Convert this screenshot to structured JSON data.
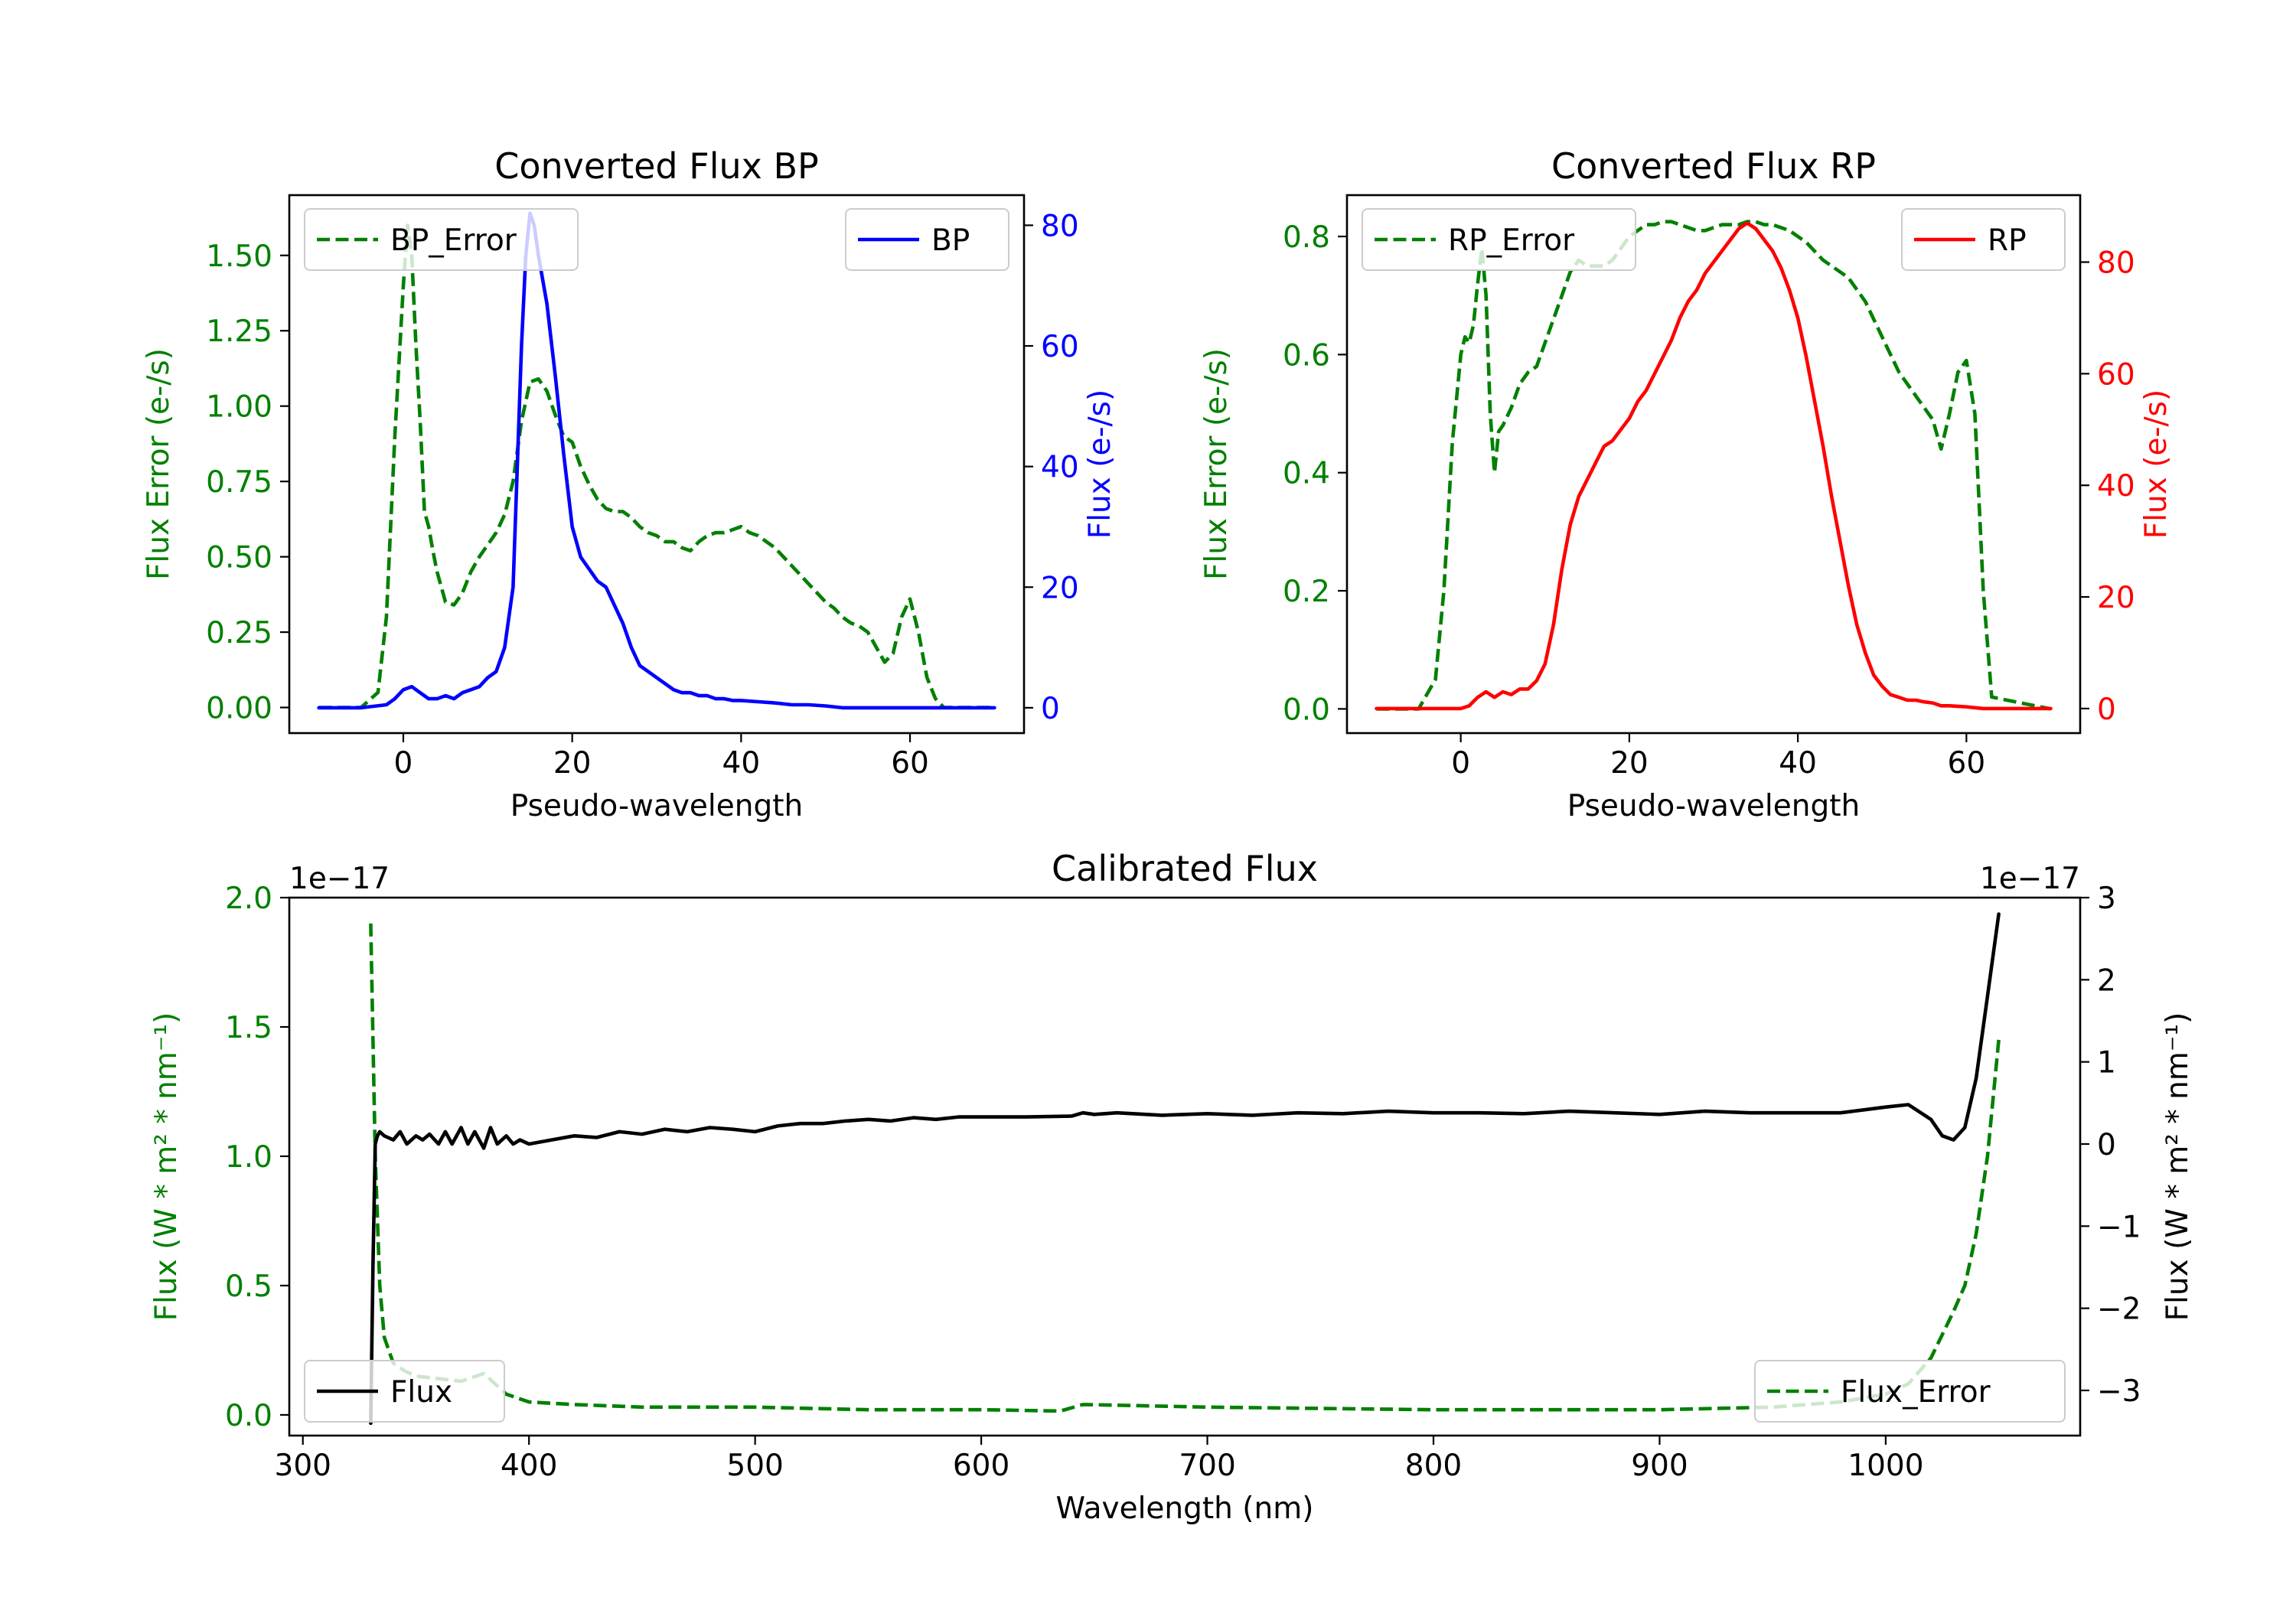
{
  "colors": {
    "bp": "#0000ff",
    "rp": "#ff0000",
    "error": "#008000",
    "flux": "#000000",
    "axis": "#000000",
    "legend_border": "#cccccc"
  },
  "chart_data": [
    {
      "id": "bp",
      "type": "line",
      "title": "Converted Flux BP",
      "xlabel": "Pseudo-wavelength",
      "ylabel_left": "Flux Error (e-/s)",
      "ylabel_right": "Flux (e-/s)",
      "xlim": [
        -13.5,
        73.5
      ],
      "ylim_left": [
        -0.085,
        1.7
      ],
      "ylim_right": [
        -4.2,
        85
      ],
      "xticks": [
        0,
        20,
        40,
        60
      ],
      "yticks_left": [
        0.0,
        0.25,
        0.5,
        0.75,
        1.0,
        1.25,
        1.5
      ],
      "ytick_labels_left": [
        "0.00",
        "0.25",
        "0.50",
        "0.75",
        "1.00",
        "1.25",
        "1.50"
      ],
      "yticks_right": [
        0,
        20,
        40,
        60,
        80
      ],
      "ytick_labels_right": [
        "0",
        "20",
        "40",
        "60",
        "80"
      ],
      "legend_left": "BP_Error",
      "legend_right": "BP",
      "series": [
        {
          "name": "BP_Error",
          "axis": "left",
          "style": "dashed",
          "color_key": "error",
          "x": [
            -10,
            -5,
            -3,
            -2,
            -1,
            0,
            0.5,
            1,
            1.5,
            2,
            2.5,
            3,
            3.5,
            4,
            4.5,
            5,
            6,
            7,
            8,
            9,
            10,
            11,
            12,
            13,
            14,
            15,
            16,
            17,
            18,
            19,
            20,
            21,
            22,
            23,
            24,
            25,
            26,
            27,
            28,
            29,
            30,
            31,
            32,
            33,
            34,
            35,
            36,
            37,
            38,
            39,
            40,
            41,
            42,
            43,
            44,
            45,
            46,
            47,
            48,
            49,
            50,
            51,
            52,
            53,
            54,
            55,
            56,
            57,
            58,
            59,
            60,
            61,
            62,
            63,
            64,
            70
          ],
          "y": [
            0.0,
            0.0,
            0.05,
            0.3,
            0.9,
            1.4,
            1.6,
            1.5,
            1.2,
            0.95,
            0.65,
            0.6,
            0.52,
            0.45,
            0.4,
            0.35,
            0.34,
            0.38,
            0.45,
            0.5,
            0.54,
            0.58,
            0.64,
            0.75,
            0.95,
            1.08,
            1.09,
            1.05,
            0.97,
            0.9,
            0.88,
            0.8,
            0.74,
            0.69,
            0.66,
            0.65,
            0.65,
            0.63,
            0.6,
            0.58,
            0.57,
            0.55,
            0.55,
            0.53,
            0.52,
            0.55,
            0.57,
            0.58,
            0.58,
            0.59,
            0.6,
            0.58,
            0.57,
            0.55,
            0.53,
            0.5,
            0.47,
            0.44,
            0.41,
            0.38,
            0.35,
            0.33,
            0.3,
            0.28,
            0.27,
            0.25,
            0.2,
            0.15,
            0.18,
            0.3,
            0.36,
            0.25,
            0.1,
            0.03,
            0.0,
            0.0
          ]
        },
        {
          "name": "BP",
          "axis": "right",
          "style": "solid",
          "color_key": "bp",
          "x": [
            -10,
            -5,
            -2,
            -1,
            0,
            1,
            2,
            3,
            4,
            5,
            6,
            7,
            8,
            9,
            10,
            11,
            12,
            13,
            13.5,
            14,
            14.5,
            15,
            15.5,
            16,
            17,
            18,
            19,
            20,
            21,
            22,
            23,
            24,
            25,
            26,
            27,
            28,
            29,
            30,
            31,
            32,
            33,
            34,
            35,
            36,
            37,
            38,
            39,
            40,
            42,
            44,
            46,
            48,
            50,
            52,
            54,
            56,
            60,
            65,
            70
          ],
          "y": [
            0,
            0,
            0.5,
            1.5,
            3,
            3.5,
            2.5,
            1.5,
            1.5,
            2,
            1.5,
            2.5,
            3,
            3.5,
            5,
            6,
            10,
            20,
            40,
            60,
            75,
            82,
            80,
            75,
            67,
            55,
            42,
            30,
            25,
            23,
            21,
            20,
            17,
            14,
            10,
            7,
            6,
            5,
            4,
            3,
            2.5,
            2.5,
            2,
            2,
            1.5,
            1.5,
            1.2,
            1.2,
            1,
            0.8,
            0.5,
            0.5,
            0.3,
            0,
            0,
            0,
            0,
            0,
            0
          ]
        }
      ]
    },
    {
      "id": "rp",
      "type": "line",
      "title": "Converted Flux RP",
      "xlabel": "Pseudo-wavelength",
      "ylabel_left": "Flux Error (e-/s)",
      "ylabel_right": "Flux (e-/s)",
      "xlim": [
        -13.5,
        73.5
      ],
      "ylim_left": [
        -0.041,
        0.87
      ],
      "ylim_right": [
        -4.4,
        92
      ],
      "xticks": [
        0,
        20,
        40,
        60
      ],
      "yticks_left": [
        0.0,
        0.2,
        0.4,
        0.6,
        0.8
      ],
      "ytick_labels_left": [
        "0.0",
        "0.2",
        "0.4",
        "0.6",
        "0.8"
      ],
      "yticks_right": [
        0,
        20,
        40,
        60,
        80
      ],
      "ytick_labels_right": [
        "0",
        "20",
        "40",
        "60",
        "80"
      ],
      "legend_left": "RP_Error",
      "legend_right": "RP",
      "series": [
        {
          "name": "RP_Error",
          "axis": "left",
          "style": "dashed",
          "color_key": "error",
          "x": [
            -10,
            -5,
            -3,
            -2,
            -1,
            0,
            0.5,
            1,
            1.5,
            2,
            2.5,
            3,
            3.5,
            4,
            4.5,
            5,
            6,
            7,
            8,
            9,
            10,
            11,
            12,
            13,
            14,
            15,
            16,
            17,
            18,
            19,
            20,
            21,
            22,
            23,
            24,
            25,
            26,
            27,
            28,
            29,
            30,
            31,
            32,
            33,
            34,
            35,
            36,
            37,
            38,
            39,
            40,
            41,
            42,
            43,
            44,
            45,
            46,
            47,
            48,
            49,
            50,
            51,
            52,
            53,
            54,
            55,
            56,
            57,
            58,
            59,
            60,
            61,
            62,
            63,
            70
          ],
          "y": [
            0.0,
            0.0,
            0.05,
            0.2,
            0.45,
            0.6,
            0.63,
            0.62,
            0.65,
            0.72,
            0.78,
            0.7,
            0.5,
            0.4,
            0.47,
            0.48,
            0.51,
            0.55,
            0.57,
            0.58,
            0.62,
            0.66,
            0.7,
            0.74,
            0.76,
            0.75,
            0.75,
            0.75,
            0.76,
            0.78,
            0.8,
            0.81,
            0.82,
            0.82,
            0.825,
            0.825,
            0.82,
            0.815,
            0.81,
            0.81,
            0.815,
            0.82,
            0.82,
            0.82,
            0.825,
            0.825,
            0.82,
            0.82,
            0.815,
            0.81,
            0.8,
            0.79,
            0.775,
            0.76,
            0.75,
            0.74,
            0.73,
            0.71,
            0.69,
            0.66,
            0.63,
            0.6,
            0.57,
            0.55,
            0.53,
            0.51,
            0.49,
            0.44,
            0.5,
            0.57,
            0.59,
            0.5,
            0.2,
            0.02,
            0.0
          ]
        },
        {
          "name": "RP",
          "axis": "right",
          "style": "solid",
          "color_key": "rp",
          "x": [
            -10,
            -5,
            0,
            1,
            2,
            3,
            4,
            5,
            6,
            7,
            8,
            9,
            10,
            11,
            12,
            13,
            14,
            15,
            16,
            17,
            18,
            19,
            20,
            21,
            22,
            23,
            24,
            25,
            26,
            27,
            28,
            29,
            30,
            31,
            32,
            33,
            34,
            35,
            36,
            37,
            38,
            39,
            40,
            41,
            42,
            43,
            44,
            45,
            46,
            47,
            48,
            49,
            50,
            51,
            52,
            53,
            54,
            55,
            56,
            57,
            58,
            60,
            62,
            65,
            70
          ],
          "y": [
            0,
            0,
            0,
            0.5,
            2,
            3,
            2,
            3,
            2.5,
            3.5,
            3.5,
            5,
            8,
            15,
            25,
            33,
            38,
            41,
            44,
            47,
            48,
            50,
            52,
            55,
            57,
            60,
            63,
            66,
            70,
            73,
            75,
            78,
            80,
            82,
            84,
            86,
            87,
            86,
            84,
            82,
            79,
            75,
            70,
            63,
            55,
            47,
            38,
            30,
            22,
            15,
            10,
            6,
            4,
            2.5,
            2,
            1.5,
            1.5,
            1.2,
            1,
            0.5,
            0.5,
            0.3,
            0,
            0,
            0
          ]
        }
      ]
    },
    {
      "id": "calibrated",
      "type": "line",
      "title": "Calibrated Flux",
      "xlabel": "Wavelength (nm)",
      "ylabel_left": "Flux (W * m² * nm⁻¹)",
      "ylabel_right": "Flux (W * m² * nm⁻¹)",
      "offset_left": "1e−17",
      "offset_right": "1e−17",
      "xlim": [
        294,
        1086
      ],
      "ylim_left": [
        -0.08,
        2.0
      ],
      "ylim_right": [
        -3.55,
        3.0
      ],
      "xticks": [
        300,
        400,
        500,
        600,
        700,
        800,
        900,
        1000
      ],
      "yticks_left": [
        0.0,
        0.5,
        1.0,
        1.5,
        2.0
      ],
      "ytick_labels_left": [
        "0.0",
        "0.5",
        "1.0",
        "1.5",
        "2.0"
      ],
      "yticks_right": [
        -3,
        -2,
        -1,
        0,
        1,
        2,
        3
      ],
      "ytick_labels_right": [
        "−3",
        "−2",
        "−1",
        "0",
        "1",
        "2",
        "3"
      ],
      "legend_left": "Flux",
      "legend_right": "Flux_Error",
      "series": [
        {
          "name": "Flux_Error",
          "axis": "left",
          "style": "dashed",
          "color_key": "error",
          "x": [
            330,
            332,
            334,
            336,
            340,
            345,
            350,
            360,
            370,
            380,
            385,
            390,
            400,
            420,
            450,
            500,
            550,
            600,
            635,
            645,
            700,
            800,
            900,
            950,
            980,
            1000,
            1010,
            1020,
            1030,
            1035,
            1040,
            1045,
            1050
          ],
          "y": [
            1.9,
            1.0,
            0.5,
            0.3,
            0.2,
            0.17,
            0.15,
            0.14,
            0.13,
            0.16,
            0.12,
            0.08,
            0.05,
            0.04,
            0.03,
            0.03,
            0.02,
            0.02,
            0.015,
            0.04,
            0.03,
            0.02,
            0.02,
            0.03,
            0.05,
            0.08,
            0.12,
            0.22,
            0.4,
            0.5,
            0.7,
            1.0,
            1.45
          ]
        },
        {
          "name": "Flux",
          "axis": "right",
          "style": "solid",
          "color_key": "flux",
          "x": [
            330,
            331,
            332,
            333,
            334,
            336,
            340,
            343,
            346,
            350,
            353,
            356,
            360,
            363,
            366,
            370,
            373,
            376,
            380,
            383,
            386,
            390,
            393,
            396,
            400,
            410,
            420,
            430,
            440,
            450,
            460,
            470,
            480,
            490,
            500,
            510,
            520,
            530,
            540,
            550,
            560,
            570,
            580,
            590,
            600,
            620,
            640,
            645,
            650,
            660,
            680,
            700,
            720,
            740,
            760,
            780,
            800,
            820,
            840,
            860,
            880,
            900,
            920,
            940,
            960,
            980,
            1000,
            1010,
            1020,
            1025,
            1030,
            1035,
            1040,
            1045,
            1050
          ],
          "y": [
            -3.4,
            -1.5,
            0.0,
            0.1,
            0.15,
            0.1,
            0.05,
            0.15,
            0.0,
            0.1,
            0.05,
            0.12,
            0.0,
            0.15,
            0.0,
            0.2,
            0.0,
            0.15,
            -0.05,
            0.2,
            0.0,
            0.1,
            0.0,
            0.05,
            0.0,
            0.05,
            0.1,
            0.08,
            0.15,
            0.12,
            0.18,
            0.15,
            0.2,
            0.18,
            0.15,
            0.22,
            0.25,
            0.25,
            0.28,
            0.3,
            0.28,
            0.32,
            0.3,
            0.33,
            0.33,
            0.33,
            0.34,
            0.38,
            0.36,
            0.38,
            0.35,
            0.37,
            0.35,
            0.38,
            0.37,
            0.4,
            0.38,
            0.38,
            0.37,
            0.4,
            0.38,
            0.36,
            0.4,
            0.38,
            0.38,
            0.38,
            0.45,
            0.48,
            0.3,
            0.1,
            0.05,
            0.2,
            0.8,
            1.8,
            2.8
          ]
        }
      ]
    }
  ]
}
